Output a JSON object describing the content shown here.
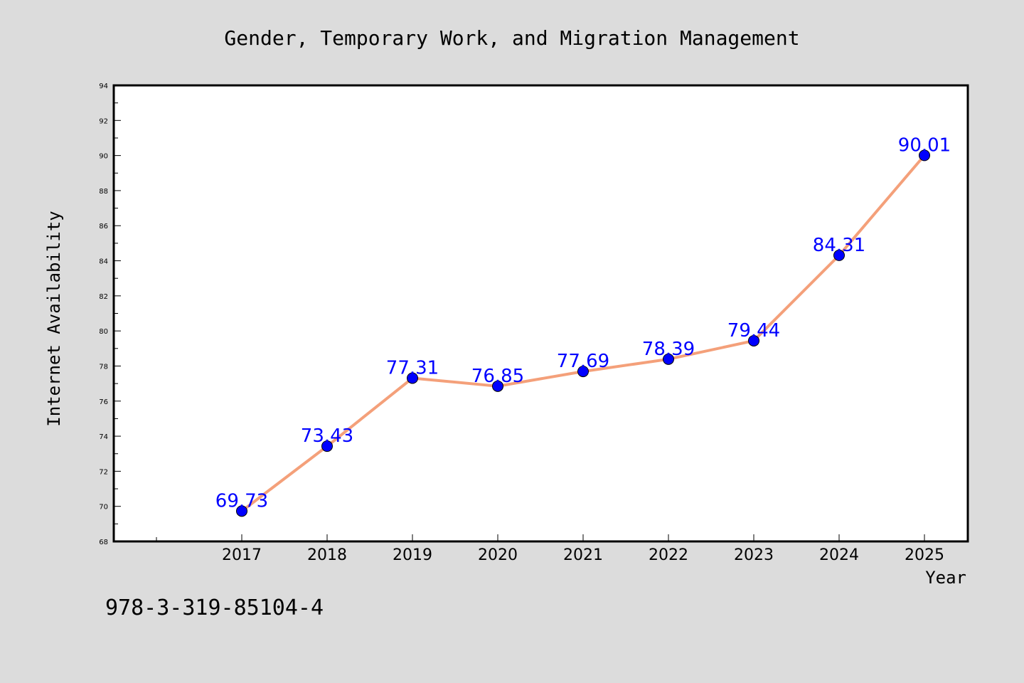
{
  "chart_data": {
    "type": "line",
    "title": "Gender, Temporary Work, and Migration Management",
    "xlabel": "Year",
    "ylabel": "Internet Availability",
    "x": [
      "2017",
      "2018",
      "2019",
      "2020",
      "2021",
      "2022",
      "2023",
      "2024",
      "2025"
    ],
    "series": [
      {
        "values": [
          69.73,
          73.43,
          77.31,
          76.85,
          77.69,
          78.39,
          79.44,
          84.31,
          90.01
        ],
        "labels": [
          "69.73",
          "73.43",
          "77.31",
          "76.85",
          "77.69",
          "78.39",
          "79.44",
          "84.31",
          "90.01"
        ],
        "line_color": "#f4a07a",
        "marker_color": "#0000ff"
      }
    ],
    "ylim": [
      68,
      94
    ],
    "yticks": [
      "68",
      "70",
      "72",
      "74",
      "76",
      "78",
      "80",
      "82",
      "84",
      "86",
      "88",
      "90",
      "92",
      "94"
    ],
    "grid": false,
    "legend": "none"
  },
  "footer": {
    "isbn": "978-3-319-85104-4"
  }
}
